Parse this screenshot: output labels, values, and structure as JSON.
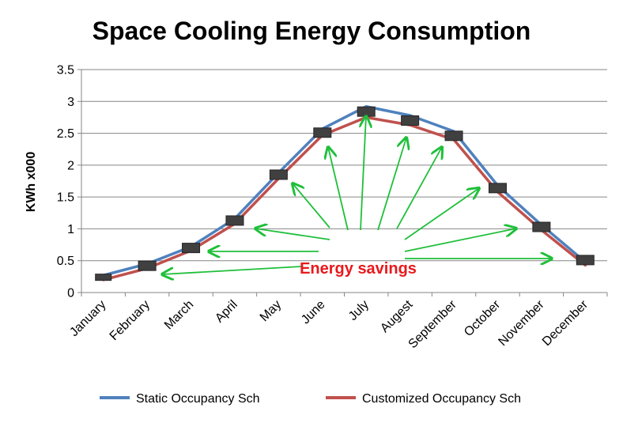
{
  "chart_data": {
    "type": "line",
    "title": "Space Cooling Energy Consumption",
    "ylabel": "KWh x000",
    "xlabel": "",
    "ylim": [
      0,
      3.5
    ],
    "yticks": [
      "0",
      "0.5",
      "1",
      "1.5",
      "2",
      "2.5",
      "3",
      "3.5"
    ],
    "grid": true,
    "legend_position": "bottom",
    "categories": [
      "January",
      "February",
      "March",
      "April",
      "May",
      "June",
      "July",
      "Augest",
      "September",
      "October",
      "November",
      "December"
    ],
    "series": [
      {
        "name": "Static Occupancy Sch",
        "color": "#4f81bd",
        "values": [
          0.27,
          0.45,
          0.72,
          1.16,
          1.88,
          2.57,
          2.92,
          2.78,
          2.53,
          1.68,
          1.06,
          0.48
        ]
      },
      {
        "name": "Customized Occupancy Sch",
        "color": "#c0504d",
        "values": [
          0.2,
          0.38,
          0.66,
          1.08,
          1.79,
          2.47,
          2.75,
          2.63,
          2.4,
          1.58,
          0.98,
          0.43
        ]
      }
    ],
    "markers": [
      0.24,
      0.42,
      0.7,
      1.13,
      1.85,
      2.51,
      2.84,
      2.7,
      2.46,
      1.64,
      1.03,
      0.51
    ],
    "marker_color": "#404040",
    "annotation": {
      "text": "Energy savings",
      "color": "#e8191c",
      "arrow_color": "#1fbf3a"
    }
  }
}
